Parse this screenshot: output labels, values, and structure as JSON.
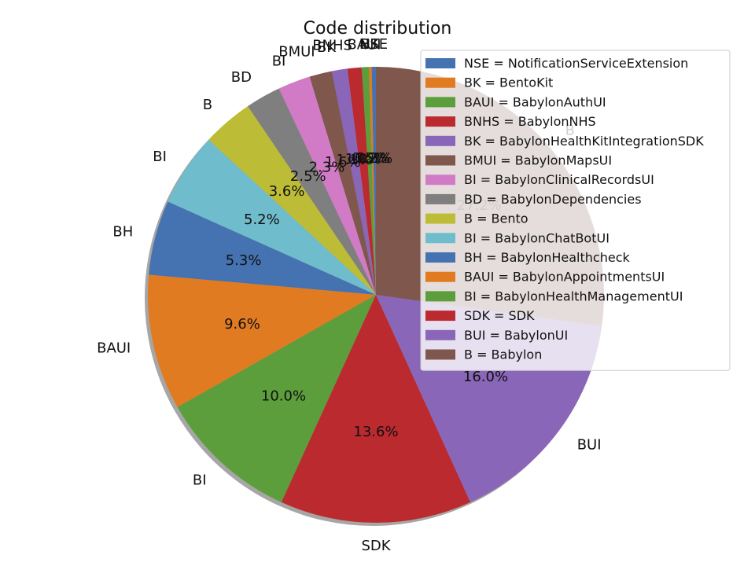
{
  "chart_data": {
    "type": "pie",
    "title": "Code distribution",
    "slices": [
      {
        "label": "NSE",
        "legend": "NSE = NotificationServiceExtension",
        "value": 0.3,
        "pct_label": "0.3%",
        "color": "#4572b0"
      },
      {
        "label": "BK",
        "legend": "BK = BentoKit",
        "value": 0.2,
        "pct_label": "0.2%",
        "color": "#e07b22"
      },
      {
        "label": "BAUI",
        "legend": "BAUI = BabylonAuthUI",
        "value": 0.5,
        "pct_label": "0.5%",
        "color": "#5c9e3b"
      },
      {
        "label": "BNHS",
        "legend": "BNHS = BabylonNHS",
        "value": 1.0,
        "pct_label": "1.0%",
        "color": "#bb2a2f"
      },
      {
        "label": "BK",
        "legend": "BK = BabylonHealthKitIntegrationSDK",
        "value": 1.1,
        "pct_label": "1.1%",
        "color": "#8966b8"
      },
      {
        "label": "BMUI",
        "legend": "BMUI = BabylonMapsUI",
        "value": 1.6,
        "pct_label": "1.6%",
        "color": "#7f574d"
      },
      {
        "label": "BI",
        "legend": "BI = BabylonClinicalRecordsUI",
        "value": 2.3,
        "pct_label": "2.3%",
        "color": "#d17bc6"
      },
      {
        "label": "BD",
        "legend": "BD = BabylonDependencies",
        "value": 2.5,
        "pct_label": "2.5%",
        "color": "#7f7f7f"
      },
      {
        "label": "B",
        "legend": "B = Bento",
        "value": 3.6,
        "pct_label": "3.6%",
        "color": "#bdbc36"
      },
      {
        "label": "BI",
        "legend": "BI = BabylonChatBotUI",
        "value": 5.2,
        "pct_label": "5.2%",
        "color": "#6fbccc"
      },
      {
        "label": "BH",
        "legend": "BH = BabylonHealthcheck",
        "value": 5.3,
        "pct_label": "5.3%",
        "color": "#4572b0"
      },
      {
        "label": "BAUI",
        "legend": "BAUI = BabylonAppointmentsUI",
        "value": 9.6,
        "pct_label": "9.6%",
        "color": "#e07b22"
      },
      {
        "label": "BI",
        "legend": "BI = BabylonHealthManagementUI",
        "value": 10.0,
        "pct_label": "10.0%",
        "color": "#5c9e3b"
      },
      {
        "label": "SDK",
        "legend": "SDK = SDK",
        "value": 13.6,
        "pct_label": "13.6%",
        "color": "#bb2a2f"
      },
      {
        "label": "BUI",
        "legend": "BUI = BabylonUI",
        "value": 16.0,
        "pct_label": "16.0%",
        "color": "#8966b8"
      },
      {
        "label": "B",
        "legend": "B = Babylon",
        "value": 27.2,
        "pct_label": "27.2%",
        "color": "#7f574d"
      }
    ],
    "start_angle": 90,
    "direction": "counterclockwise",
    "shadow": true,
    "legend_position": "upper-right"
  }
}
